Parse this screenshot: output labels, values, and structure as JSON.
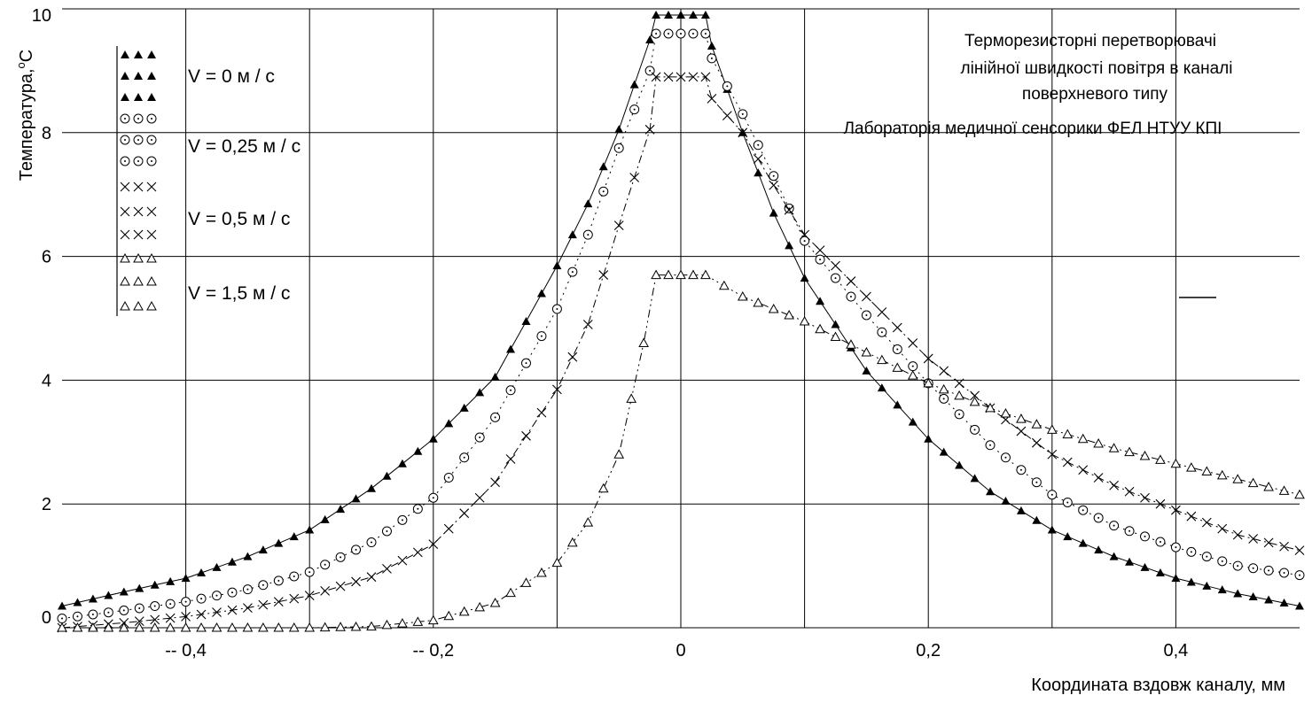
{
  "chart_data": {
    "type": "line",
    "title_lines": [
      "Терморезисторні перетворювачі",
      "лінійної швидкості повітря в каналі",
      "поверхневого типу",
      "Лабораторія медичної сенсорики ФЕЛ НТУУ КПІ"
    ],
    "xlabel": "Координата вздовж каналу, мм",
    "ylabel_main": "Температура,",
    "ylabel_sup": "o",
    "ylabel_unit": "C",
    "xlim": [
      -0.5,
      0.5
    ],
    "ylim": [
      0,
      10
    ],
    "xticks": [
      -0.4,
      -0.3,
      -0.2,
      -0.1,
      0,
      0.1,
      0.2,
      0.3,
      0.4
    ],
    "xtick_labels": [
      "-- 0,4",
      "",
      "-- 0,2",
      "",
      "0",
      "",
      "0,2",
      "",
      "0,4"
    ],
    "yticks": [
      0,
      2,
      4,
      6,
      8,
      10
    ],
    "ytick_labels": [
      "0",
      "2",
      "4",
      "6",
      "8",
      "10"
    ],
    "grid": true,
    "legend_position": "top-left",
    "series": [
      {
        "name": "V = 0 м / с",
        "marker": "filled-triangle",
        "line_style": "solid",
        "x": [
          -0.5,
          -0.45,
          -0.4,
          -0.35,
          -0.3,
          -0.25,
          -0.2,
          -0.15,
          -0.1,
          -0.075,
          -0.05,
          -0.025,
          -0.02,
          0,
          0.02,
          0.025,
          0.05,
          0.075,
          0.1,
          0.15,
          0.2,
          0.25,
          0.3,
          0.35,
          0.4,
          0.45,
          0.5
        ],
        "y": [
          0.35,
          0.58,
          0.8,
          1.15,
          1.58,
          2.25,
          3.05,
          4.05,
          5.85,
          6.85,
          8.05,
          9.5,
          9.9,
          9.9,
          9.9,
          9.4,
          8.0,
          6.7,
          5.65,
          4.15,
          3.05,
          2.2,
          1.58,
          1.15,
          0.8,
          0.55,
          0.35
        ]
      },
      {
        "name": "V = 0,25 м / с",
        "marker": "dotted-circle",
        "line_style": "dotted",
        "x": [
          -0.5,
          -0.45,
          -0.4,
          -0.35,
          -0.3,
          -0.25,
          -0.2,
          -0.15,
          -0.1,
          -0.075,
          -0.05,
          -0.025,
          -0.02,
          0,
          0.02,
          0.025,
          0.05,
          0.075,
          0.1,
          0.15,
          0.2,
          0.25,
          0.3,
          0.35,
          0.4,
          0.45,
          0.5
        ],
        "y": [
          0.15,
          0.28,
          0.42,
          0.62,
          0.9,
          1.38,
          2.1,
          3.4,
          5.15,
          6.35,
          7.75,
          9.0,
          9.6,
          9.6,
          9.6,
          9.2,
          8.3,
          7.3,
          6.25,
          5.05,
          3.95,
          2.95,
          2.15,
          1.65,
          1.3,
          1.0,
          0.85
        ]
      },
      {
        "name": "V = 0,5 м / с",
        "marker": "cross",
        "line_style": "dash-dot",
        "x": [
          -0.5,
          -0.45,
          -0.4,
          -0.35,
          -0.3,
          -0.25,
          -0.2,
          -0.15,
          -0.1,
          -0.075,
          -0.05,
          -0.025,
          -0.02,
          0,
          0.02,
          0.025,
          0.05,
          0.075,
          0.1,
          0.15,
          0.2,
          0.25,
          0.3,
          0.35,
          0.4,
          0.45,
          0.5
        ],
        "y": [
          0.0,
          0.08,
          0.18,
          0.32,
          0.52,
          0.82,
          1.35,
          2.35,
          3.85,
          4.9,
          6.5,
          8.05,
          8.9,
          8.9,
          8.9,
          8.55,
          8.0,
          7.15,
          6.35,
          5.35,
          4.35,
          3.55,
          2.8,
          2.3,
          1.9,
          1.5,
          1.25
        ]
      },
      {
        "name": "V = 1,5 м / с",
        "marker": "open-triangle",
        "line_style": "dash-dot-dot",
        "x": [
          -0.5,
          -0.4,
          -0.3,
          -0.25,
          -0.2,
          -0.15,
          -0.1,
          -0.075,
          -0.05,
          -0.04,
          -0.03,
          -0.02,
          0,
          0.02,
          0.05,
          0.1,
          0.15,
          0.2,
          0.25,
          0.3,
          0.35,
          0.4,
          0.45,
          0.5
        ],
        "y": [
          0.0,
          0.0,
          0.0,
          0.02,
          0.12,
          0.4,
          1.05,
          1.7,
          2.8,
          3.7,
          4.6,
          5.7,
          5.7,
          5.7,
          5.35,
          4.95,
          4.45,
          3.95,
          3.55,
          3.2,
          2.9,
          2.65,
          2.4,
          2.15
        ]
      }
    ]
  }
}
